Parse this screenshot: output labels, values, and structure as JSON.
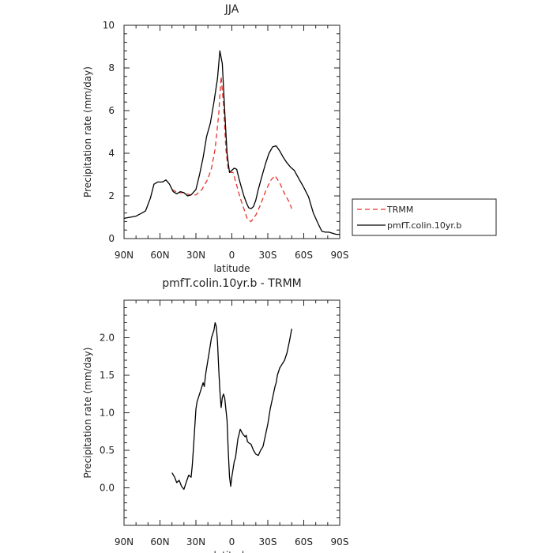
{
  "chart_data": [
    {
      "type": "line",
      "title": "JJA",
      "xlabel": "latitude",
      "ylabel": "Precipitation rate (mm/day)",
      "xlim": [
        90,
        -90
      ],
      "ylim": [
        0,
        10
      ],
      "x_ticks": [
        90,
        60,
        30,
        0,
        -30,
        -60,
        -90
      ],
      "x_tick_labels": [
        "90N",
        "60N",
        "30N",
        "0",
        "30S",
        "60S",
        "90S"
      ],
      "y_ticks": [
        0,
        2,
        4,
        6,
        8,
        10
      ],
      "y_tick_labels": [
        "0",
        "2",
        "4",
        "6",
        "8",
        "10"
      ],
      "grid": false,
      "legend": {
        "placement": "outside-right"
      },
      "series": [
        {
          "name": "TRMM",
          "color": "#e8322a",
          "dash": "dashed",
          "x": [
            50,
            45,
            40,
            35,
            30,
            25,
            20,
            17,
            14,
            11,
            9,
            7,
            5,
            3,
            1,
            -1,
            -4,
            -7,
            -10,
            -13,
            -16,
            -20,
            -24,
            -28,
            -32,
            -36,
            -40,
            -44,
            -48,
            -50
          ],
          "y": [
            2.3,
            2.15,
            2.15,
            2.05,
            2.05,
            2.3,
            2.8,
            3.3,
            4.2,
            5.8,
            7.6,
            6.3,
            4.2,
            3.2,
            3.1,
            3.1,
            2.5,
            1.9,
            1.4,
            0.9,
            0.8,
            1.1,
            1.6,
            2.2,
            2.7,
            2.95,
            2.6,
            2.1,
            1.7,
            1.4
          ]
        },
        {
          "name": "pmfT.colin.10yr.b",
          "color": "#000000",
          "dash": "solid",
          "x": [
            90,
            85,
            80,
            75,
            72,
            68,
            65,
            62,
            58,
            55,
            52,
            49,
            46,
            43,
            40,
            37,
            34,
            30,
            27,
            24,
            21,
            18,
            15,
            12,
            10,
            8,
            6,
            4,
            2,
            0,
            -2,
            -4,
            -6,
            -8,
            -10,
            -12,
            -14,
            -16,
            -18,
            -20,
            -22,
            -25,
            -28,
            -31,
            -34,
            -37,
            -40,
            -43,
            -46,
            -49,
            -52,
            -56,
            -60,
            -64,
            -68,
            -72,
            -75,
            -78,
            -81,
            -84,
            -87,
            -90
          ],
          "y": [
            0.95,
            1.0,
            1.05,
            1.2,
            1.3,
            1.9,
            2.55,
            2.65,
            2.65,
            2.75,
            2.55,
            2.2,
            2.1,
            2.2,
            2.15,
            2.0,
            2.05,
            2.3,
            3.0,
            3.8,
            4.8,
            5.4,
            6.4,
            7.5,
            8.8,
            8.2,
            6.0,
            4.0,
            3.1,
            3.2,
            3.3,
            3.25,
            2.8,
            2.4,
            2.0,
            1.7,
            1.45,
            1.4,
            1.5,
            1.8,
            2.3,
            2.9,
            3.5,
            4.0,
            4.3,
            4.35,
            4.1,
            3.8,
            3.55,
            3.35,
            3.2,
            2.8,
            2.4,
            1.95,
            1.2,
            0.7,
            0.35,
            0.3,
            0.3,
            0.25,
            0.2,
            0.2
          ]
        }
      ]
    },
    {
      "type": "line",
      "title": "pmfT.colin.10yr.b - TRMM",
      "xlabel": "latitude",
      "ylabel": "Precipitation rate (mm/day)",
      "xlim": [
        90,
        -90
      ],
      "ylim": [
        -0.5,
        2.5
      ],
      "x_ticks": [
        90,
        60,
        30,
        0,
        -30,
        -60,
        -90
      ],
      "x_tick_labels": [
        "90N",
        "60N",
        "30N",
        "0",
        "30S",
        "60S",
        "90S"
      ],
      "y_ticks": [
        0,
        0.5,
        1.0,
        1.5,
        2.0
      ],
      "y_tick_labels": [
        "0.0",
        "0.5",
        "1.0",
        "1.5",
        "2.0"
      ],
      "grid": false,
      "series": [
        {
          "color": "#000000",
          "dash": "solid",
          "x": [
            50,
            48,
            46,
            44,
            42,
            40,
            38,
            36,
            34,
            33,
            32,
            31,
            30,
            29,
            27,
            25,
            24,
            23,
            22,
            21,
            19,
            17,
            15,
            14,
            13,
            12,
            11,
            10,
            9,
            8,
            7,
            6,
            4,
            3,
            2,
            1,
            0,
            -1,
            -2,
            -3,
            -5,
            -7,
            -9,
            -10,
            -11,
            -12,
            -13,
            -14,
            -16,
            -18,
            -20,
            -22,
            -24,
            -26,
            -28,
            -30,
            -32,
            -34,
            -36,
            -37,
            -38,
            -40,
            -42,
            -44,
            -46,
            -48,
            -50
          ],
          "y": [
            0.2,
            0.15,
            0.07,
            0.1,
            0.02,
            -0.02,
            0.08,
            0.17,
            0.14,
            0.3,
            0.55,
            0.8,
            1.05,
            1.15,
            1.25,
            1.35,
            1.4,
            1.35,
            1.5,
            1.6,
            1.8,
            2.0,
            2.1,
            2.2,
            2.15,
            1.95,
            1.6,
            1.3,
            1.07,
            1.2,
            1.25,
            1.2,
            0.9,
            0.5,
            0.15,
            0.02,
            0.15,
            0.25,
            0.35,
            0.4,
            0.65,
            0.78,
            0.72,
            0.7,
            0.68,
            0.7,
            0.62,
            0.6,
            0.58,
            0.5,
            0.45,
            0.43,
            0.5,
            0.55,
            0.7,
            0.85,
            1.05,
            1.2,
            1.35,
            1.4,
            1.5,
            1.6,
            1.65,
            1.7,
            1.8,
            1.95,
            2.12
          ]
        }
      ]
    }
  ]
}
